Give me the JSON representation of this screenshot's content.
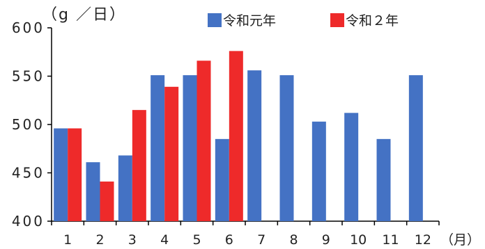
{
  "chart_data": {
    "type": "bar",
    "categories": [
      "1",
      "2",
      "3",
      "4",
      "5",
      "6",
      "7",
      "8",
      "9",
      "10",
      "11",
      "12"
    ],
    "series": [
      {
        "name": "令和元年",
        "color": "#4472c4",
        "values": [
          496,
          461,
          468,
          551,
          551,
          485,
          556,
          551,
          503,
          512,
          485,
          551
        ]
      },
      {
        "name": "令和２年",
        "color": "#ee2a2a",
        "values": [
          496,
          441,
          515,
          539,
          566,
          576,
          null,
          null,
          null,
          null,
          null,
          null
        ]
      }
    ],
    "ylabel": "（g ／日）",
    "xlabel": "（月）",
    "ylim": [
      400,
      600
    ],
    "yticks": [
      400,
      450,
      500,
      550,
      600
    ],
    "grid": false,
    "legend": "top-right"
  }
}
